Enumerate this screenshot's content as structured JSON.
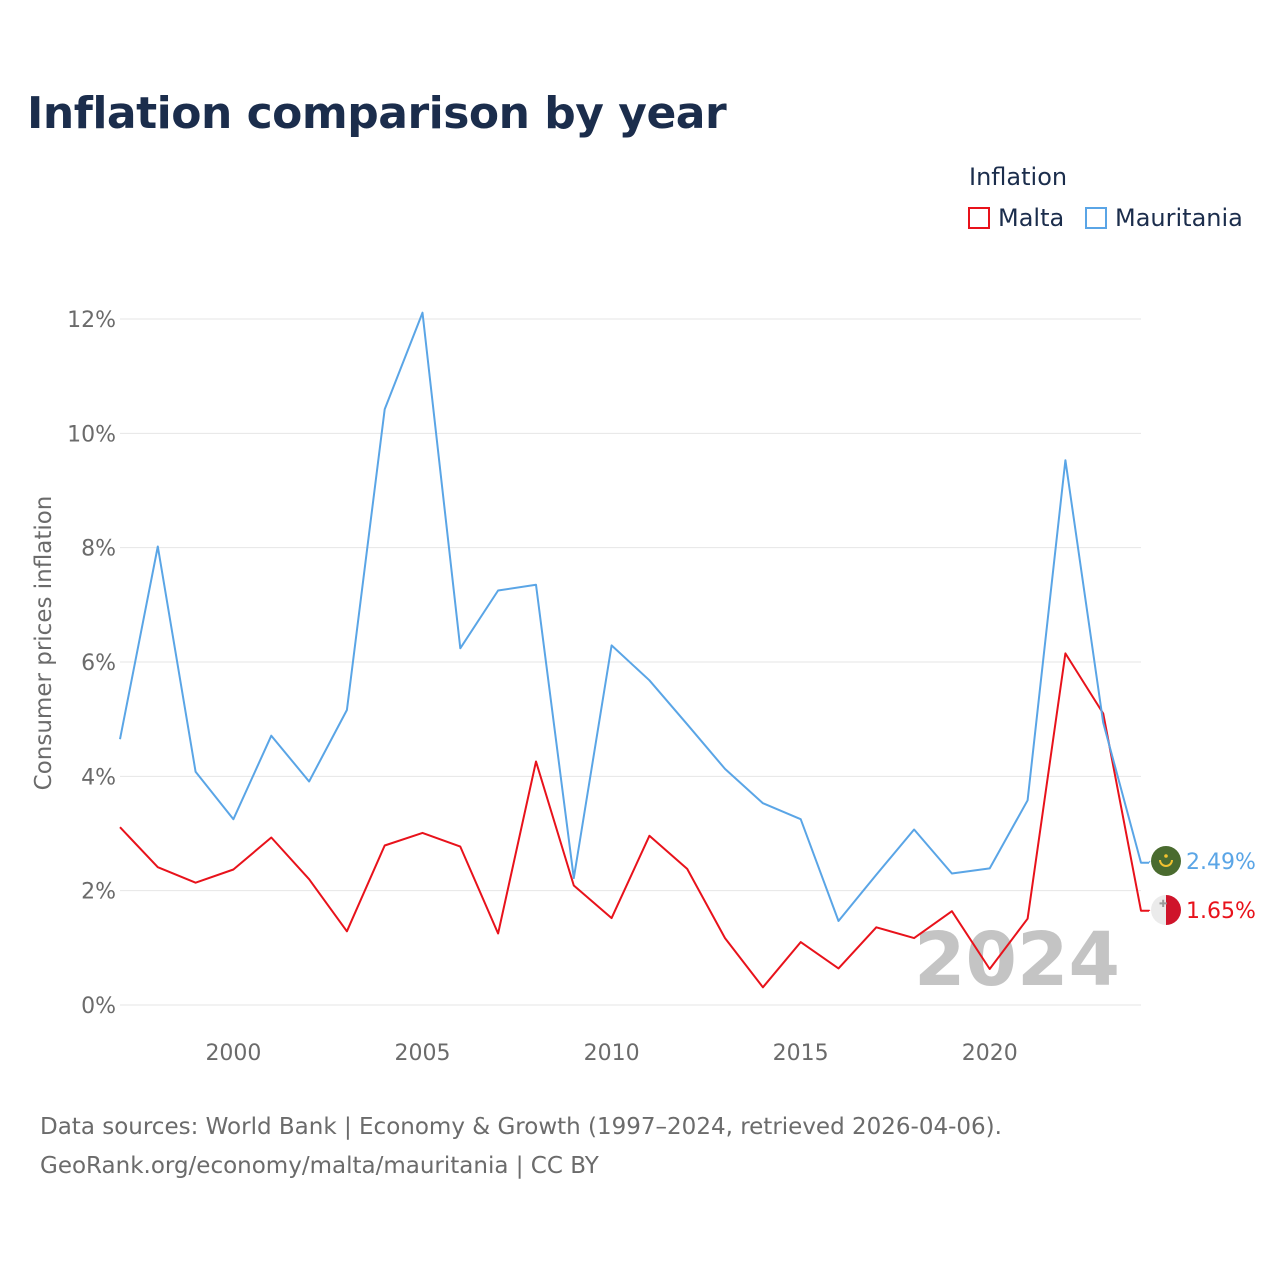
{
  "title": "Inflation comparison by year",
  "legend": {
    "title": "Inflation",
    "items": [
      {
        "label": "Malta",
        "color": "#e8121b"
      },
      {
        "label": "Mauritania",
        "color": "#5aa5e6"
      }
    ]
  },
  "chart_data": {
    "type": "line",
    "title": "Inflation comparison by year",
    "ylabel": "Consumer prices inflation",
    "xlabel": "",
    "xlim": [
      1997,
      2024
    ],
    "ylim": [
      0,
      12
    ],
    "yticks": [
      0,
      2,
      4,
      6,
      8,
      10,
      12
    ],
    "ytick_labels": [
      "0%",
      "2%",
      "4%",
      "6%",
      "8%",
      "10%",
      "12%"
    ],
    "xticks": [
      2000,
      2005,
      2010,
      2015,
      2020
    ],
    "xtick_labels": [
      "2000",
      "2005",
      "2010",
      "2015",
      "2020"
    ],
    "x": [
      1997,
      1998,
      1999,
      2000,
      2001,
      2002,
      2003,
      2004,
      2005,
      2006,
      2007,
      2008,
      2009,
      2010,
      2011,
      2012,
      2013,
      2014,
      2015,
      2016,
      2017,
      2018,
      2019,
      2020,
      2021,
      2022,
      2023,
      2024
    ],
    "series": [
      {
        "name": "Malta",
        "color": "#e8121b",
        "values": [
          3.11,
          2.41,
          2.14,
          2.37,
          2.93,
          2.2,
          1.29,
          2.79,
          3.01,
          2.77,
          1.25,
          4.26,
          2.09,
          1.52,
          2.96,
          2.38,
          1.17,
          0.31,
          1.1,
          0.64,
          1.36,
          1.17,
          1.64,
          0.63,
          1.51,
          6.15,
          5.1,
          1.65
        ],
        "end_label": "1.65%"
      },
      {
        "name": "Mauritania",
        "color": "#5aa5e6",
        "values": [
          4.65,
          8.02,
          4.08,
          3.25,
          4.71,
          3.91,
          5.16,
          10.42,
          12.11,
          6.24,
          7.25,
          7.35,
          2.22,
          6.29,
          5.68,
          4.91,
          4.13,
          3.53,
          3.25,
          1.47,
          2.28,
          3.07,
          2.3,
          2.39,
          3.58,
          9.53,
          4.94,
          2.49
        ],
        "end_label": "2.49%"
      }
    ],
    "year_watermark": "2024"
  },
  "source": {
    "line1": "Data sources: World Bank | Economy & Growth (1997–2024, retrieved 2026-04-06).",
    "line2": "GeoRank.org/economy/malta/mauritania | CC BY"
  }
}
